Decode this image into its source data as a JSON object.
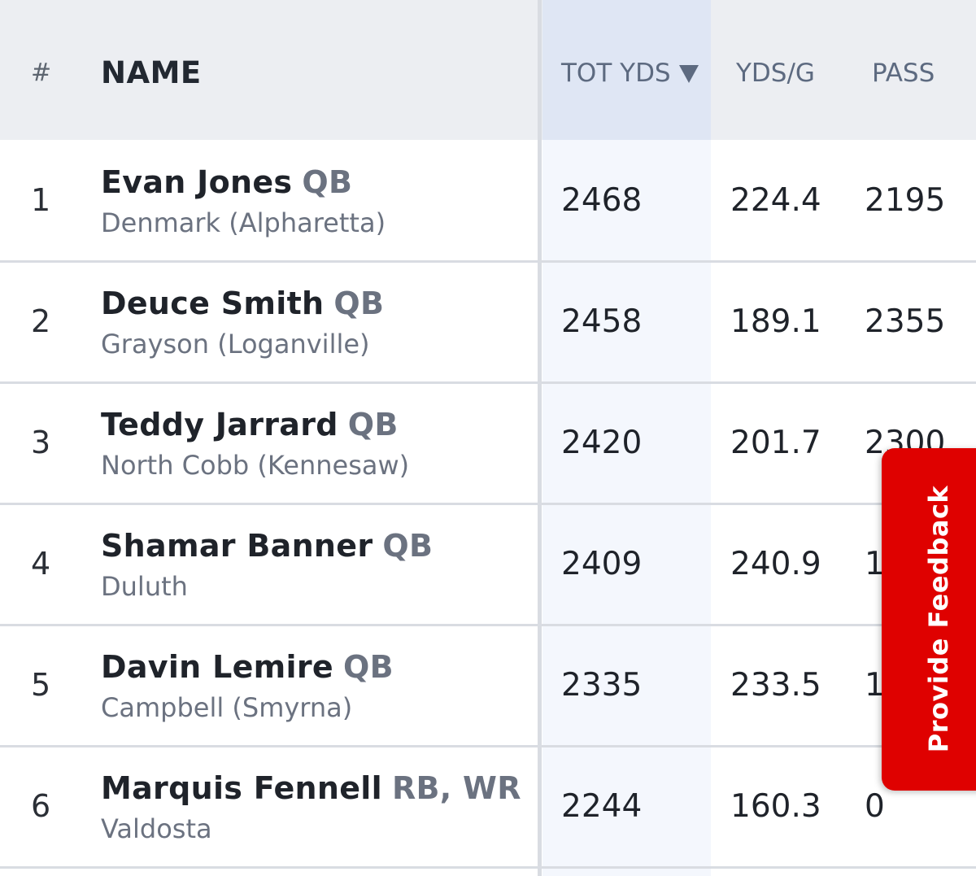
{
  "header": {
    "rank_label": "#",
    "name_label": "NAME",
    "tot_yds_label": "TOT YDS",
    "yds_per_game_label": "YDS/G",
    "pass_label": "PASS"
  },
  "sort": {
    "column": "TOT YDS",
    "direction": "descending",
    "icon": "sort-down-triangle-icon"
  },
  "rows": [
    {
      "rank": "1",
      "name": "Evan Jones",
      "position": "QB",
      "school": "Denmark (Alpharetta)",
      "tot_yds": "2468",
      "yds_per_game": "224.4",
      "pass": "2195"
    },
    {
      "rank": "2",
      "name": "Deuce Smith",
      "position": "QB",
      "school": "Grayson (Loganville)",
      "tot_yds": "2458",
      "yds_per_game": "189.1",
      "pass": "2355"
    },
    {
      "rank": "3",
      "name": "Teddy Jarrard",
      "position": "QB",
      "school": "North Cobb (Kennesaw)",
      "tot_yds": "2420",
      "yds_per_game": "201.7",
      "pass": "2300"
    },
    {
      "rank": "4",
      "name": "Shamar Banner",
      "position": "QB",
      "school": "Duluth",
      "tot_yds": "2409",
      "yds_per_game": "240.9",
      "pass": "1"
    },
    {
      "rank": "5",
      "name": "Davin Lemire",
      "position": "QB",
      "school": "Campbell (Smyrna)",
      "tot_yds": "2335",
      "yds_per_game": "233.5",
      "pass": "1"
    },
    {
      "rank": "6",
      "name": "Marquis Fennell",
      "position": "RB, WR",
      "school": "Valdosta",
      "tot_yds": "2244",
      "yds_per_game": "160.3",
      "pass": "0"
    }
  ],
  "feedback": {
    "label": "Provide Feedback",
    "color": "#df0100"
  },
  "colors": {
    "header_bg": "#eceef2",
    "sorted_column_bg": "#f4f7fd",
    "sorted_header_bg": "#dfe6f4",
    "divider": "#d9dce2"
  }
}
